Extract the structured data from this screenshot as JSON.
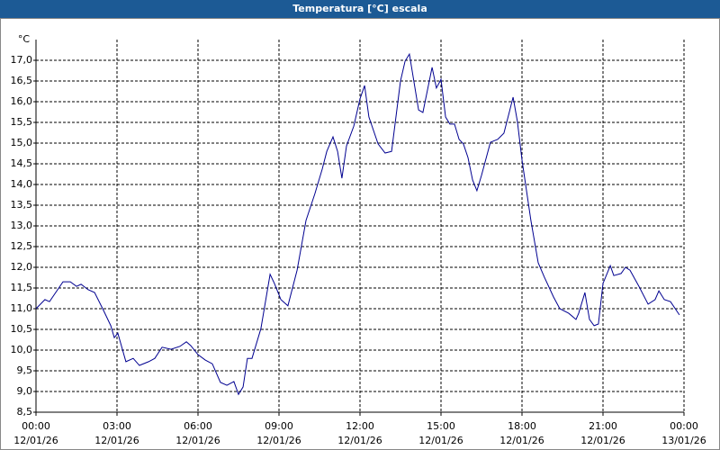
{
  "chart_data": {
    "type": "line",
    "title": "Temperatura [°C] escala",
    "y_label": "°C",
    "xlim": [
      0,
      24
    ],
    "xticks": [
      {
        "value": 0,
        "label": "00:00",
        "date": "12/01/26"
      },
      {
        "value": 3,
        "label": "03:00",
        "date": "12/01/26"
      },
      {
        "value": 6,
        "label": "06:00",
        "date": "12/01/26"
      },
      {
        "value": 9,
        "label": "09:00",
        "date": "12/01/26"
      },
      {
        "value": 12,
        "label": "12:00",
        "date": "12/01/26"
      },
      {
        "value": 15,
        "label": "15:00",
        "date": "12/01/26"
      },
      {
        "value": 18,
        "label": "18:00",
        "date": "12/01/26"
      },
      {
        "value": 21,
        "label": "21:00",
        "date": "12/01/26"
      },
      {
        "value": 24,
        "label": "00:00",
        "date": "13/01/26"
      }
    ],
    "ylim": [
      8.5,
      17.5
    ],
    "yticks": [
      {
        "value": 8.5,
        "label": "8,5"
      },
      {
        "value": 9,
        "label": "9,0"
      },
      {
        "value": 9.5,
        "label": "9,5"
      },
      {
        "value": 10,
        "label": "10,0"
      },
      {
        "value": 10.5,
        "label": "10,5"
      },
      {
        "value": 11,
        "label": "11,0"
      },
      {
        "value": 11.5,
        "label": "11,5"
      },
      {
        "value": 12,
        "label": "12,0"
      },
      {
        "value": 12.5,
        "label": "12,5"
      },
      {
        "value": 13,
        "label": "13,0"
      },
      {
        "value": 13.5,
        "label": "13,5"
      },
      {
        "value": 14,
        "label": "14,0"
      },
      {
        "value": 14.5,
        "label": "14,5"
      },
      {
        "value": 15,
        "label": "15,0"
      },
      {
        "value": 15.5,
        "label": "15,5"
      },
      {
        "value": 16,
        "label": "16,0"
      },
      {
        "value": 16.5,
        "label": "16,5"
      },
      {
        "value": 17,
        "label": "17,0"
      }
    ],
    "grid": true,
    "series": [
      {
        "color": "#000090",
        "x": [
          0,
          0.33,
          0.5,
          1.0,
          1.27,
          1.5,
          1.67,
          1.93,
          2.17,
          2.5,
          2.77,
          2.9,
          3.03,
          3.33,
          3.6,
          3.83,
          4.17,
          4.4,
          4.67,
          5.0,
          5.33,
          5.57,
          5.73,
          6.0,
          6.27,
          6.53,
          6.83,
          7.07,
          7.33,
          7.5,
          7.67,
          7.83,
          8.0,
          8.33,
          8.67,
          8.83,
          9.07,
          9.33,
          9.67,
          10.0,
          10.33,
          10.6,
          10.77,
          11.0,
          11.17,
          11.33,
          11.5,
          11.77,
          12.0,
          12.17,
          12.33,
          12.67,
          12.93,
          13.17,
          13.5,
          13.67,
          13.83,
          14.17,
          14.33,
          14.67,
          14.83,
          15.0,
          15.17,
          15.33,
          15.5,
          15.67,
          15.83,
          16.0,
          16.17,
          16.33,
          16.5,
          16.83,
          17.1,
          17.33,
          17.5,
          17.67,
          17.83,
          18.0,
          18.33,
          18.6,
          18.83,
          19.17,
          19.4,
          19.73,
          20.0,
          20.1,
          20.33,
          20.5,
          20.67,
          20.83,
          21.0,
          21.27,
          21.4,
          21.67,
          21.83,
          22.0,
          22.33,
          22.67,
          22.93,
          23.07,
          23.27,
          23.5,
          23.83
        ],
        "values": [
          11.0,
          11.22,
          11.17,
          11.65,
          11.65,
          11.54,
          11.59,
          11.46,
          11.39,
          10.96,
          10.59,
          10.3,
          10.41,
          9.72,
          9.8,
          9.63,
          9.72,
          9.8,
          10.07,
          10.02,
          10.09,
          10.2,
          10.11,
          9.89,
          9.76,
          9.67,
          9.22,
          9.15,
          9.24,
          8.93,
          9.11,
          9.8,
          9.8,
          10.52,
          11.83,
          11.61,
          11.22,
          11.07,
          11.93,
          13.13,
          13.78,
          14.37,
          14.8,
          15.15,
          14.8,
          14.15,
          14.93,
          15.41,
          16.07,
          16.39,
          15.63,
          14.98,
          14.76,
          14.8,
          16.5,
          16.98,
          17.15,
          15.8,
          15.74,
          16.83,
          16.33,
          16.54,
          15.63,
          15.46,
          15.46,
          15.09,
          14.98,
          14.65,
          14.11,
          13.85,
          14.22,
          15.02,
          15.09,
          15.24,
          15.67,
          16.11,
          15.52,
          14.59,
          13.13,
          12.11,
          11.76,
          11.28,
          11.0,
          10.89,
          10.74,
          10.89,
          11.39,
          10.74,
          10.59,
          10.63,
          11.61,
          12.04,
          11.8,
          11.85,
          12.0,
          11.93,
          11.54,
          11.11,
          11.22,
          11.43,
          11.22,
          11.17,
          10.85
        ]
      }
    ]
  }
}
